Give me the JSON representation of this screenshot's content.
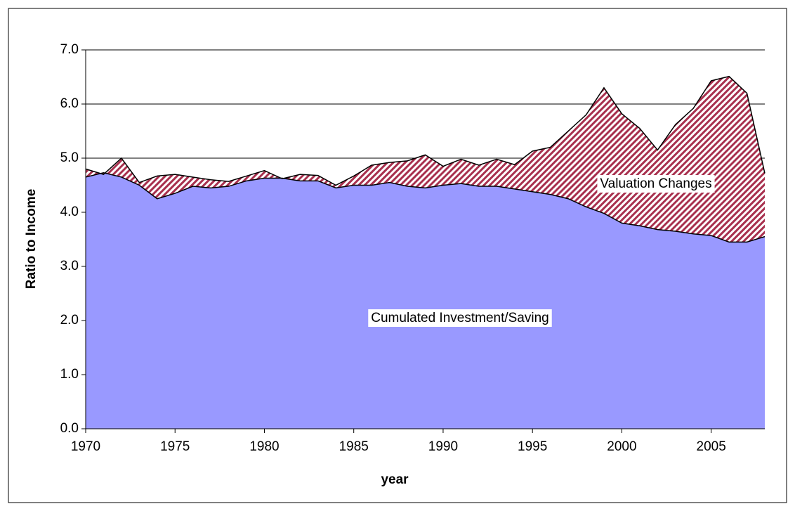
{
  "chart_data": {
    "type": "area",
    "x_label": "year",
    "y_label": "Ratio to Income",
    "x": [
      1970,
      1971,
      1972,
      1973,
      1974,
      1975,
      1976,
      1977,
      1978,
      1979,
      1980,
      1981,
      1982,
      1983,
      1984,
      1985,
      1986,
      1987,
      1988,
      1989,
      1990,
      1991,
      1992,
      1993,
      1994,
      1995,
      1996,
      1997,
      1998,
      1999,
      2000,
      2001,
      2002,
      2003,
      2004,
      2005,
      2006,
      2007,
      2008
    ],
    "series": [
      {
        "name": "Cumulated Investment/Saving",
        "color": "#9999ff",
        "values": [
          4.65,
          4.73,
          4.65,
          4.5,
          4.25,
          4.35,
          4.48,
          4.45,
          4.48,
          4.58,
          4.63,
          4.63,
          4.58,
          4.58,
          4.45,
          4.5,
          4.5,
          4.55,
          4.48,
          4.45,
          4.5,
          4.53,
          4.48,
          4.48,
          4.43,
          4.38,
          4.33,
          4.25,
          4.1,
          3.98,
          3.8,
          3.75,
          3.68,
          3.65,
          3.6,
          3.57,
          3.45,
          3.45,
          3.55
        ]
      },
      {
        "name": "Valuation Changes",
        "color": "#a8304e",
        "values": [
          0.15,
          -0.03,
          0.35,
          0.05,
          0.42,
          0.35,
          0.17,
          0.15,
          0.09,
          0.09,
          0.14,
          -0.01,
          0.12,
          0.1,
          0.05,
          0.17,
          0.37,
          0.37,
          0.47,
          0.61,
          0.35,
          0.45,
          0.39,
          0.5,
          0.45,
          0.75,
          0.87,
          1.25,
          1.7,
          2.32,
          2.02,
          1.8,
          1.47,
          1.97,
          2.32,
          2.86,
          3.06,
          2.75,
          1.17
        ]
      }
    ],
    "stacked": true,
    "xlim": [
      1970,
      2008
    ],
    "xticks": [
      1970,
      1975,
      1980,
      1985,
      1990,
      1995,
      2000,
      2005
    ],
    "ylim": [
      0,
      7
    ],
    "yticks": [
      {
        "value": 0,
        "label": "0.0"
      },
      {
        "value": 1,
        "label": "1.0"
      },
      {
        "value": 2,
        "label": "2.0"
      },
      {
        "value": 3,
        "label": "3.0"
      },
      {
        "value": 4,
        "label": "4.0"
      },
      {
        "value": 5,
        "label": "5.0"
      },
      {
        "value": 6,
        "label": "6.0"
      },
      {
        "value": 7,
        "label": "7.0"
      }
    ],
    "grid": true
  }
}
